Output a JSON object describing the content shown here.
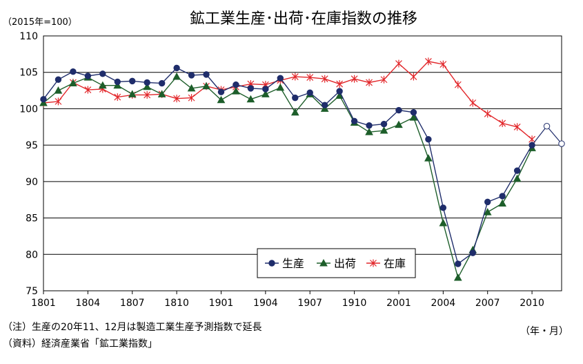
{
  "chart_data": {
    "type": "line",
    "title": "鉱工業生産･出荷･在庫指数の推移",
    "unit_label": "（2015年=100）",
    "xlabel": "（年・月）",
    "ylim": [
      75,
      110
    ],
    "yticks": [
      75,
      80,
      85,
      90,
      95,
      100,
      105,
      110
    ],
    "x_tick_labels": [
      "1801",
      "1804",
      "1807",
      "1810",
      "1901",
      "1904",
      "1907",
      "1910",
      "2001",
      "2004",
      "2007",
      "2010"
    ],
    "x": [
      "1801",
      "1802",
      "1803",
      "1804",
      "1805",
      "1806",
      "1807",
      "1808",
      "1809",
      "1810",
      "1811",
      "1812",
      "1901",
      "1902",
      "1903",
      "1904",
      "1905",
      "1906",
      "1907",
      "1908",
      "1909",
      "1910",
      "1911",
      "1912",
      "2001",
      "2002",
      "2003",
      "2004",
      "2005",
      "2006",
      "2007",
      "2008",
      "2009",
      "2010",
      "2011",
      "2012"
    ],
    "grid": true,
    "legend_position": "bottom-center",
    "series": [
      {
        "name": "生産",
        "color": "#1f2d6b",
        "marker": "circle",
        "values": [
          101.3,
          104.0,
          105.1,
          104.5,
          104.8,
          103.7,
          103.8,
          103.6,
          103.5,
          105.6,
          104.6,
          104.7,
          102.3,
          103.3,
          102.8,
          102.7,
          104.2,
          101.5,
          102.2,
          100.5,
          102.4,
          98.3,
          97.7,
          97.9,
          99.8,
          99.5,
          95.8,
          86.4,
          78.7,
          80.2,
          87.2,
          88.0,
          91.5,
          95.0,
          null,
          null
        ],
        "projected": [
          null,
          null,
          null,
          null,
          null,
          null,
          null,
          null,
          null,
          null,
          null,
          null,
          null,
          null,
          null,
          null,
          null,
          null,
          null,
          null,
          null,
          null,
          null,
          null,
          null,
          null,
          null,
          null,
          null,
          null,
          null,
          null,
          null,
          95.0,
          97.6,
          95.2
        ]
      },
      {
        "name": "出荷",
        "color": "#1d5e2a",
        "marker": "triangle",
        "values": [
          100.8,
          102.5,
          103.5,
          104.3,
          103.2,
          103.2,
          102.0,
          103.0,
          102.0,
          104.4,
          102.8,
          103.1,
          101.2,
          102.4,
          101.3,
          102.0,
          102.9,
          99.5,
          102.0,
          100.0,
          101.8,
          98.1,
          96.8,
          97.0,
          97.8,
          98.8,
          93.2,
          84.3,
          76.8,
          80.6,
          85.8,
          87.0,
          90.4,
          94.6,
          null,
          null
        ]
      },
      {
        "name": "在庫",
        "color": "#e2262a",
        "marker": "star",
        "values": [
          100.8,
          101.0,
          103.6,
          102.6,
          102.7,
          101.6,
          101.9,
          101.9,
          102.0,
          101.4,
          101.5,
          103.1,
          102.6,
          103.0,
          103.4,
          103.3,
          103.9,
          104.4,
          104.3,
          104.1,
          103.4,
          104.1,
          103.6,
          104.0,
          106.2,
          104.4,
          106.5,
          106.1,
          103.3,
          100.8,
          99.3,
          98.0,
          97.5,
          95.8,
          null,
          null
        ]
      }
    ]
  },
  "notes": {
    "note1": "（注）生産の20年11、12月は製造工業生産予測指数で延長",
    "note2": "（資料）経済産業省「鉱工業指数」"
  }
}
